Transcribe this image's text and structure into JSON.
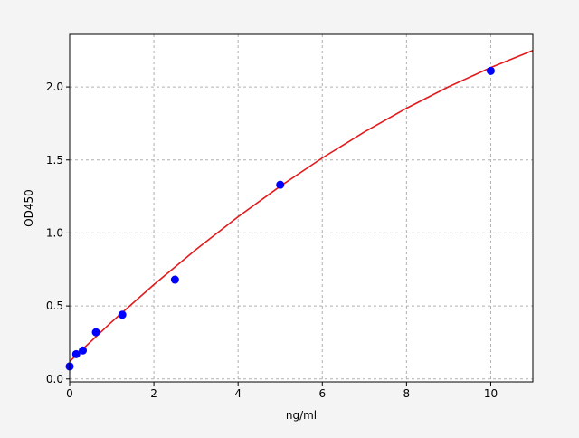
{
  "chart_data": {
    "type": "scatter",
    "title": "",
    "xlabel": "ng/ml",
    "ylabel": "OD450",
    "xlim": [
      0,
      11
    ],
    "ylim": [
      -0.02,
      2.36
    ],
    "xticks": [
      0,
      2,
      4,
      6,
      8,
      10
    ],
    "xtick_labels": [
      "0",
      "2",
      "4",
      "6",
      "8",
      "10"
    ],
    "yticks": [
      0,
      0.5,
      1.0,
      1.5,
      2.0
    ],
    "ytick_labels": [
      "0.0",
      "0.5",
      "1.0",
      "1.5",
      "2.0"
    ],
    "grid": true,
    "points": {
      "color": "#0000ff",
      "x": [
        0,
        0.156,
        0.3125,
        0.625,
        1.25,
        2.5,
        5,
        10
      ],
      "y": [
        0.086,
        0.17,
        0.195,
        0.32,
        0.44,
        0.68,
        1.33,
        2.11
      ]
    },
    "fit_curve": {
      "color": "#e31a1c",
      "x": [
        0,
        1,
        2,
        3,
        4,
        5,
        6,
        7,
        8,
        9,
        10,
        11
      ],
      "y": [
        0.12,
        0.391,
        0.646,
        0.886,
        1.111,
        1.32,
        1.514,
        1.692,
        1.854,
        2.001,
        2.133,
        2.25
      ]
    }
  }
}
